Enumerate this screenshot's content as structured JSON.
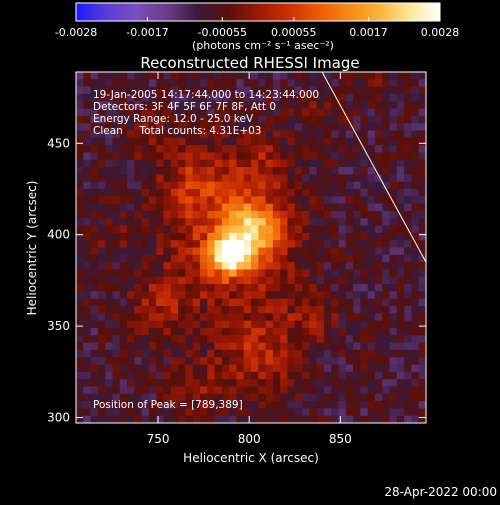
{
  "colors": {
    "background": "#000000",
    "text": "#ffffff",
    "colormap_stops": [
      "#1a1aff",
      "#5a3dd8",
      "#7a4dc0",
      "#6a3d8a",
      "#3a1a3a",
      "#5a0f08",
      "#9a1806",
      "#cc3004",
      "#ea5a06",
      "#f68a14",
      "#fbb43a",
      "#fde79a",
      "#ffffff"
    ]
  },
  "colorbar": {
    "tick_labels": [
      "-0.0028",
      "-0.0017",
      "-0.00055",
      "0.00055",
      "0.0017",
      "0.0028"
    ],
    "units_label": "(photons cm⁻² s⁻¹ asec⁻²)"
  },
  "chart_data": {
    "type": "heatmap",
    "title": "Reconstructed RHESSI Image",
    "xlabel": "Heliocentric X (arcsec)",
    "ylabel": "Heliocentric Y (arcsec)",
    "xlim": [
      705,
      897
    ],
    "ylim": [
      297,
      489
    ],
    "x_ticks": [
      750,
      800,
      850
    ],
    "y_ticks": [
      300,
      350,
      400,
      450
    ],
    "color_range": [
      -0.0028,
      0.0028
    ],
    "annotations": [
      "19-Jan-2005 14:17:44.000 to 14:23:44.000",
      "Detectors: 3F 4F 5F 6F 7F 8F, Att 0",
      "Energy Range: 12.0 - 25.0 keV",
      "Clean     Total counts: 4.31E+03"
    ],
    "peak_label": "Position of Peak = [789,389]",
    "peak_position": [
      789,
      389
    ],
    "limb_line": [
      [
        840,
        489
      ],
      [
        897,
        385
      ]
    ],
    "sources": [
      {
        "x": 789,
        "y": 389,
        "amp": 0.0028,
        "sigma": 7
      },
      {
        "x": 802,
        "y": 402,
        "amp": 0.0019,
        "sigma": 11
      },
      {
        "x": 790,
        "y": 395,
        "amp": 0.0013,
        "sigma": 24
      },
      {
        "x": 770,
        "y": 430,
        "amp": 0.0009,
        "sigma": 14
      },
      {
        "x": 805,
        "y": 438,
        "amp": 0.0007,
        "sigma": 13
      },
      {
        "x": 752,
        "y": 360,
        "amp": 0.0008,
        "sigma": 12
      },
      {
        "x": 805,
        "y": 335,
        "amp": 0.001,
        "sigma": 16
      },
      {
        "x": 770,
        "y": 318,
        "amp": 0.0006,
        "sigma": 10
      },
      {
        "x": 835,
        "y": 355,
        "amp": 0.0006,
        "sigma": 10
      },
      {
        "x": 745,
        "y": 455,
        "amp": 0.0005,
        "sigma": 9
      },
      {
        "x": 838,
        "y": 468,
        "amp": 0.0004,
        "sigma": 8
      },
      {
        "x": 725,
        "y": 400,
        "amp": 0.0004,
        "sigma": 9
      },
      {
        "x": 870,
        "y": 480,
        "amp": 0.0004,
        "sigma": 7
      }
    ],
    "background_level": -0.0008
  },
  "footer": {
    "date_label": "28-Apr-2022 00:00"
  }
}
